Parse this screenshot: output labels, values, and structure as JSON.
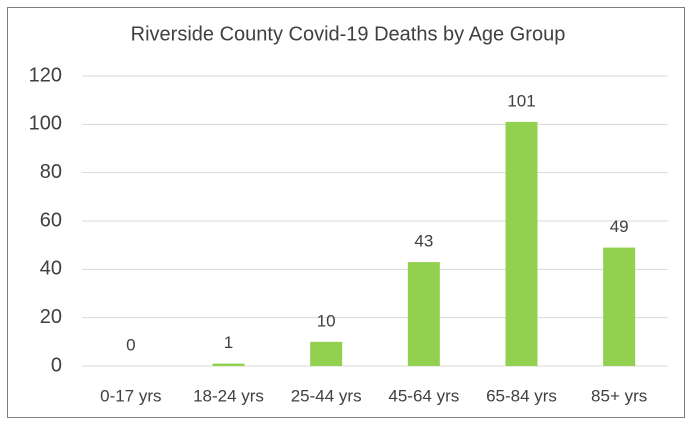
{
  "chart_data": {
    "type": "bar",
    "title": "Riverside County Covid-19 Deaths by Age Group",
    "categories": [
      "0-17 yrs",
      "18-24 yrs",
      "25-44 yrs",
      "45-64 yrs",
      "65-84 yrs",
      "85+ yrs"
    ],
    "values": [
      0,
      1,
      10,
      43,
      101,
      49
    ],
    "color": "#92d050",
    "ylim": [
      0,
      120
    ],
    "yticks": [
      0,
      20,
      40,
      60,
      80,
      100,
      120
    ],
    "grid": true
  }
}
